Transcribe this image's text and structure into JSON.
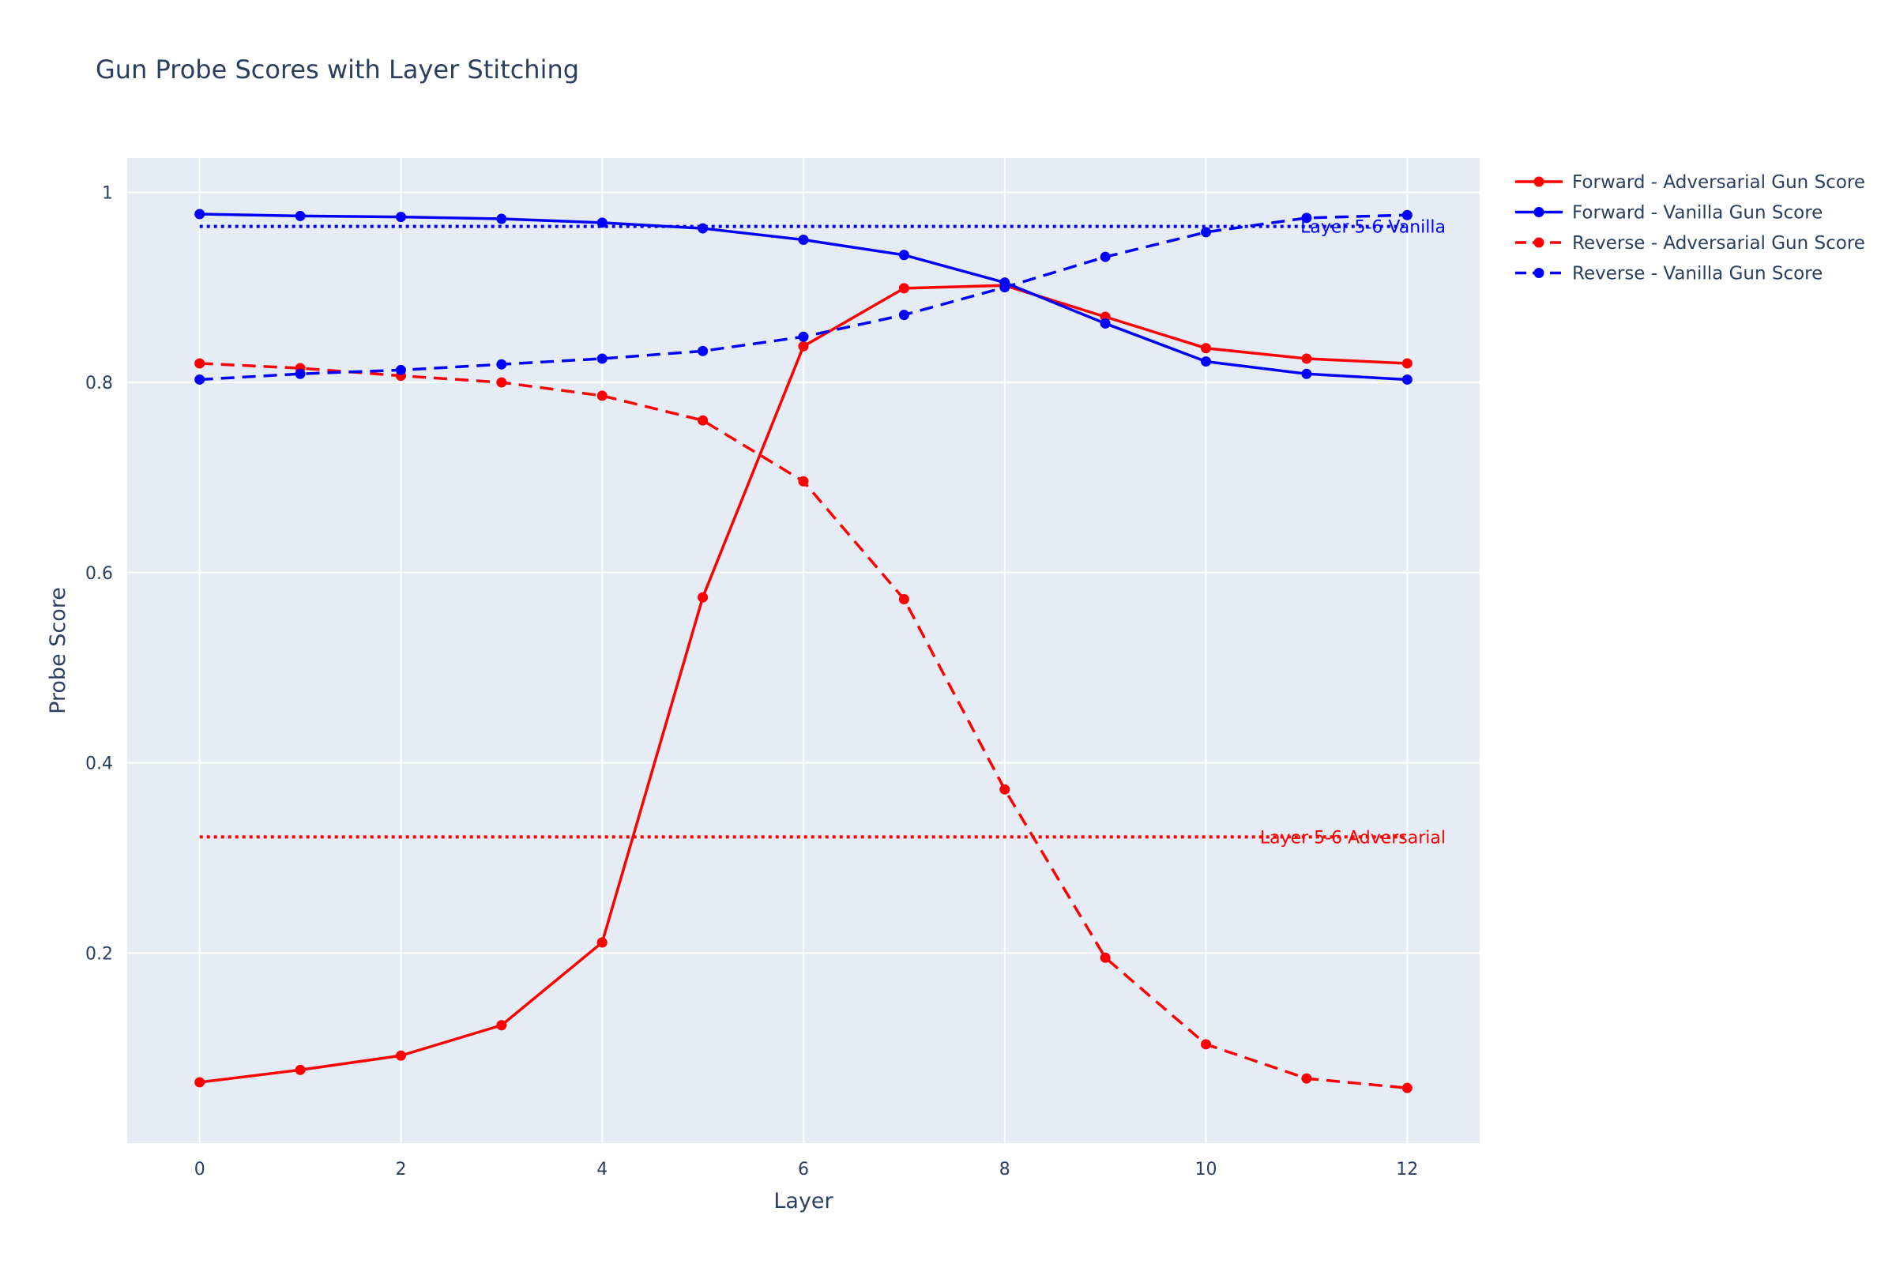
{
  "chart_data": {
    "type": "line",
    "title": "Gun Probe Scores with Layer Stitching",
    "xlabel": "Layer",
    "ylabel": "Probe Score",
    "xlim": [
      -0.72,
      12.72
    ],
    "ylim": [
      0.0,
      1.036
    ],
    "x_ticks": [
      0,
      2,
      4,
      6,
      8,
      10,
      12
    ],
    "y_ticks": [
      0.2,
      0.4,
      0.6,
      0.8,
      1.0
    ],
    "y_tick_labels": [
      "0.2",
      "0.4",
      "0.6",
      "0.8",
      "1"
    ],
    "grid": true,
    "legend_position": "top-right outside",
    "x": [
      0,
      1,
      2,
      3,
      4,
      5,
      6,
      7,
      8,
      9,
      10,
      11,
      12
    ],
    "series": [
      {
        "name": "Forward - Adversarial Gun Score",
        "color": "#ff0000",
        "dash": "solid",
        "values": [
          0.064,
          0.077,
          0.092,
          0.124,
          0.211,
          0.574,
          0.838,
          0.899,
          0.902,
          0.869,
          0.836,
          0.825,
          0.82
        ]
      },
      {
        "name": "Forward - Vanilla Gun Score",
        "color": "#0000ff",
        "dash": "solid",
        "values": [
          0.977,
          0.975,
          0.974,
          0.972,
          0.968,
          0.962,
          0.95,
          0.934,
          0.905,
          0.862,
          0.822,
          0.809,
          0.803
        ]
      },
      {
        "name": "Reverse - Adversarial Gun Score",
        "color": "#ff0000",
        "dash": "dash",
        "values": [
          0.82,
          0.815,
          0.807,
          0.8,
          0.786,
          0.76,
          0.696,
          0.572,
          0.372,
          0.195,
          0.104,
          0.068,
          0.058
        ]
      },
      {
        "name": "Reverse - Vanilla Gun Score",
        "color": "#0000ff",
        "dash": "dash",
        "values": [
          0.803,
          0.809,
          0.813,
          0.819,
          0.825,
          0.833,
          0.848,
          0.871,
          0.9,
          0.932,
          0.958,
          0.973,
          0.976
        ]
      }
    ],
    "reference_lines": [
      {
        "label": "Layer 5-6 Vanilla",
        "y": 0.964,
        "x_range": [
          0,
          12
        ],
        "color": "#0000ff"
      },
      {
        "label": "Layer 5-6 Adversarial",
        "y": 0.322,
        "x_range": [
          0,
          12
        ],
        "color": "#ff0000"
      }
    ],
    "colors": {
      "plot_bg": "#e5ecf6",
      "grid": "#ffffff",
      "text": "#2a3f5f"
    }
  }
}
